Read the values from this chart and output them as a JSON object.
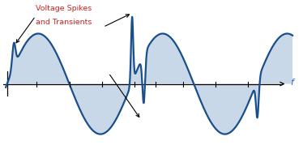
{
  "bg_color": "#ffffff",
  "line_color": "#1a4f8a",
  "fill_color": "#c8d8e8",
  "axis_color": "#000000",
  "annotation_text_color": "#cc2222",
  "label_f_color": "#3366cc",
  "title_line1": "Voltage Spikes",
  "title_line2": "and Transients",
  "xlabel": "f",
  "xlim": [
    -0.15,
    10.6
  ],
  "ylim": [
    -1.75,
    1.9
  ],
  "tick_positions": [
    1.1,
    2.3,
    3.5,
    4.7,
    5.5,
    6.5,
    7.7,
    8.9
  ],
  "zero_y": 0.0
}
